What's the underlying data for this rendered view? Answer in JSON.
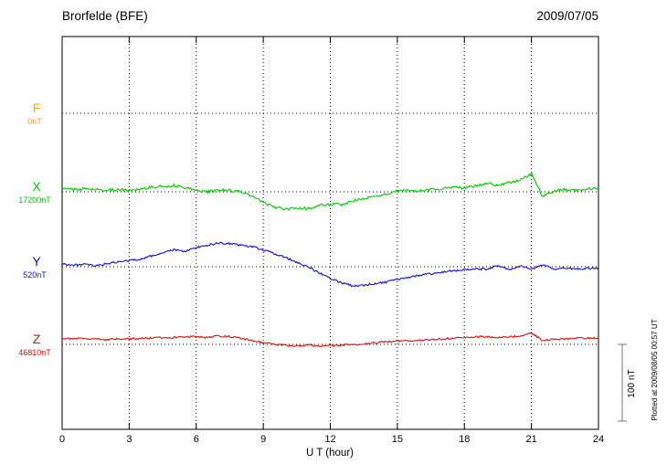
{
  "header": {
    "station": "Brorfelde (BFE)",
    "date": "2009/07/05"
  },
  "scale_bar": {
    "label": "100 nT",
    "nT": 100
  },
  "footer": {
    "plotted_at": "Plotted at 2009/08/05 00:57 UT"
  },
  "chart_data": {
    "type": "line",
    "title": "Brorfelde (BFE)",
    "subtitle": "2009/07/05",
    "xlabel": "U T (hour)",
    "x_ticks": [
      0,
      3,
      6,
      9,
      12,
      15,
      18,
      21,
      24
    ],
    "x_range_hours": [
      0,
      24
    ],
    "x_step_hours": 0.5,
    "scale_bar_nT": 100,
    "grid": "dotted-vertical-every-3h",
    "series": [
      {
        "name": "F",
        "color": "#FFA500",
        "baseline_label": "0nT",
        "baseline_nT": 0,
        "noise_nT": 0,
        "offsets_nT": null
      },
      {
        "name": "X",
        "color": "#00CC00",
        "baseline_label": "17200nT",
        "baseline_nT": 17200,
        "noise_nT": 1.8,
        "offsets_nT": [
          4,
          3,
          4,
          3,
          2,
          3,
          2,
          4,
          6,
          7,
          8,
          6,
          2,
          0,
          2,
          2,
          0,
          -6,
          -14,
          -20,
          -23,
          -21,
          -22,
          -18,
          -16,
          -17,
          -12,
          -9,
          -6,
          -3,
          1,
          2,
          1,
          3,
          4,
          6,
          5,
          8,
          11,
          9,
          12,
          15,
          24,
          -6,
          1,
          3,
          2,
          4,
          5
        ]
      },
      {
        "name": "Y",
        "color": "#1111CC",
        "baseline_label": "520nT",
        "baseline_nT": 520,
        "noise_nT": 1.3,
        "offsets_nT": [
          4,
          2,
          3,
          1,
          4,
          6,
          8,
          10,
          14,
          18,
          22,
          20,
          25,
          28,
          31,
          30,
          28,
          26,
          22,
          17,
          12,
          6,
          0,
          -8,
          -15,
          -21,
          -25,
          -24,
          -22,
          -20,
          -17,
          -14,
          -11,
          -9,
          -7,
          -5,
          -4,
          -3,
          -3,
          2,
          -4,
          1,
          -3,
          3,
          -3,
          -2,
          -3,
          -2,
          -2
        ]
      },
      {
        "name": "Z",
        "color": "#DD1111",
        "baseline_label": "46810nT",
        "baseline_nT": 46810,
        "noise_nT": 1.2,
        "offsets_nT": [
          8,
          7,
          8,
          7,
          6,
          7,
          7,
          8,
          8,
          9,
          9,
          10,
          10,
          9,
          11,
          10,
          8,
          5,
          2,
          0,
          -1,
          -2,
          -1,
          -2,
          -2,
          -1,
          0,
          0,
          2,
          4,
          4,
          5,
          5,
          6,
          7,
          8,
          9,
          10,
          10,
          9,
          10,
          11,
          15,
          5,
          7,
          7,
          8,
          8,
          8
        ]
      }
    ]
  }
}
